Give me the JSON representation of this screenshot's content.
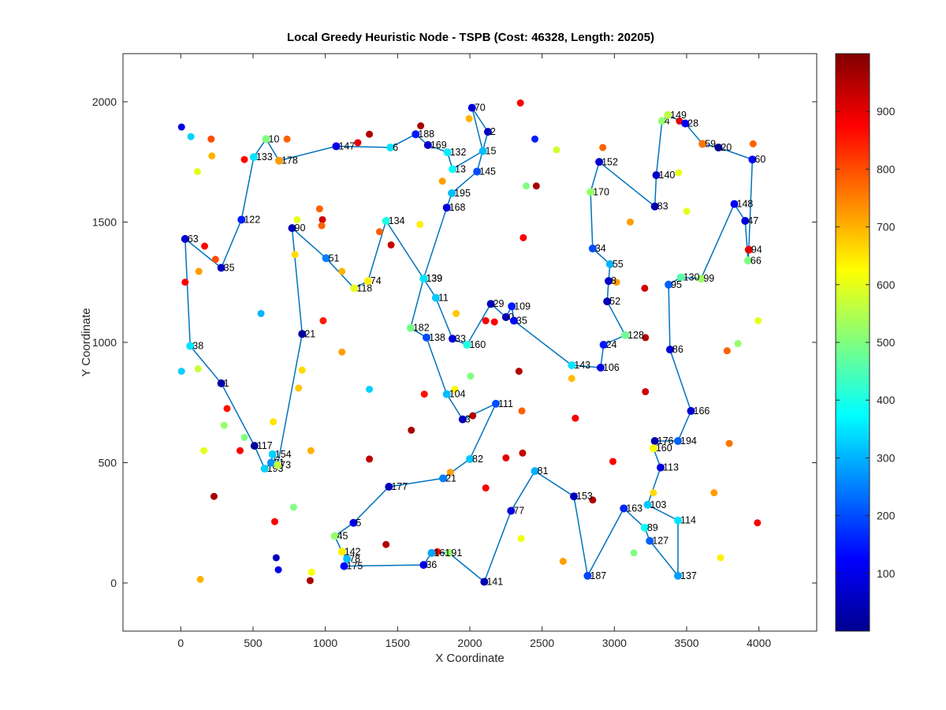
{
  "chart_data": {
    "type": "scatter",
    "title": "Local Greedy Heuristic Node - TSPB (Cost: 46328, Length: 20205)",
    "xlabel": "X Coordinate",
    "ylabel": "Y Coordinate",
    "xlim": [
      -400,
      4400
    ],
    "ylim": [
      -200,
      2200
    ],
    "xticks": [
      0,
      500,
      1000,
      1500,
      2000,
      2500,
      3000,
      3500,
      4000
    ],
    "yticks": [
      0,
      500,
      1000,
      1500,
      2000
    ],
    "colorbar": {
      "colormap": "jet",
      "range": [
        0,
        1000
      ],
      "ticks": [
        100,
        200,
        300,
        400,
        500,
        600,
        700,
        800,
        900
      ]
    },
    "grid": false,
    "route_color": "#0072BD",
    "route": [
      {
        "label": "10",
        "x": 590,
        "y": 1845,
        "c": 500
      },
      {
        "label": "133",
        "x": 505,
        "y": 1770,
        "c": 350
      },
      {
        "label": "122",
        "x": 420,
        "y": 1510,
        "c": 150
      },
      {
        "label": "35",
        "x": 280,
        "y": 1310,
        "c": 60
      },
      {
        "label": "63",
        "x": 30,
        "y": 1430,
        "c": 80
      },
      {
        "label": "38",
        "x": 65,
        "y": 985,
        "c": 350
      },
      {
        "label": "1",
        "x": 280,
        "y": 830,
        "c": 40
      },
      {
        "label": "117",
        "x": 510,
        "y": 570,
        "c": 30
      },
      {
        "label": "193",
        "x": 580,
        "y": 475,
        "c": 330
      },
      {
        "label": "31",
        "x": 625,
        "y": 500,
        "c": 270
      },
      {
        "label": "154",
        "x": 635,
        "y": 535,
        "c": 330
      },
      {
        "label": "73",
        "x": 670,
        "y": 490,
        "c": 560
      },
      {
        "label": "21",
        "x": 840,
        "y": 1035,
        "c": 30
      },
      {
        "label": "90",
        "x": 770,
        "y": 1475,
        "c": 60
      },
      {
        "label": "51",
        "x": 1005,
        "y": 1350,
        "c": 250
      },
      {
        "label": "118",
        "x": 1200,
        "y": 1225,
        "c": 600
      },
      {
        "label": "74",
        "x": 1295,
        "y": 1255,
        "c": 640
      },
      {
        "label": "134",
        "x": 1420,
        "y": 1505,
        "c": 400
      },
      {
        "label": "139",
        "x": 1680,
        "y": 1265,
        "c": 350
      },
      {
        "label": "168",
        "x": 1840,
        "y": 1560,
        "c": 90
      },
      {
        "label": "195",
        "x": 1875,
        "y": 1620,
        "c": 310
      },
      {
        "label": "145",
        "x": 2050,
        "y": 1710,
        "c": 200
      },
      {
        "label": "2",
        "x": 2125,
        "y": 1875,
        "c": 60
      },
      {
        "label": "70",
        "x": 2015,
        "y": 1975,
        "c": 90
      },
      {
        "label": "15",
        "x": 2090,
        "y": 1795,
        "c": 310
      },
      {
        "label": "13",
        "x": 1880,
        "y": 1720,
        "c": 380
      },
      {
        "label": "132",
        "x": 1845,
        "y": 1790,
        "c": 360
      },
      {
        "label": "169",
        "x": 1710,
        "y": 1820,
        "c": 70
      },
      {
        "label": "188",
        "x": 1625,
        "y": 1865,
        "c": 150
      },
      {
        "label": "6",
        "x": 1450,
        "y": 1810,
        "c": 350
      },
      {
        "label": "147",
        "x": 1075,
        "y": 1815,
        "c": 100
      },
      {
        "label": "178",
        "x": 680,
        "y": 1755,
        "c": 720
      },
      {
        "label": "10",
        "x": 590,
        "y": 1845,
        "c": 500
      }
    ],
    "route2": [
      {
        "label": "45",
        "x": 1065,
        "y": 195,
        "c": 520
      },
      {
        "label": "5",
        "x": 1195,
        "y": 250,
        "c": 100
      },
      {
        "label": "177",
        "x": 1440,
        "y": 400,
        "c": 60
      },
      {
        "label": "21",
        "x": 1815,
        "y": 435,
        "c": 250
      },
      {
        "label": "82",
        "x": 2000,
        "y": 515,
        "c": 320
      },
      {
        "label": "111",
        "x": 2180,
        "y": 745,
        "c": 200
      },
      {
        "label": "3",
        "x": 1950,
        "y": 680,
        "c": 60
      },
      {
        "label": "104",
        "x": 1840,
        "y": 785,
        "c": 310
      },
      {
        "label": "138",
        "x": 1700,
        "y": 1020,
        "c": 200
      },
      {
        "label": "182",
        "x": 1590,
        "y": 1060,
        "c": 490
      },
      {
        "label": "139",
        "x": 1680,
        "y": 1265,
        "c": 350
      },
      {
        "label": "11",
        "x": 1765,
        "y": 1185,
        "c": 320
      },
      {
        "label": "33",
        "x": 1880,
        "y": 1015,
        "c": 90
      },
      {
        "label": "160",
        "x": 1980,
        "y": 990,
        "c": 400
      },
      {
        "label": "29",
        "x": 2145,
        "y": 1160,
        "c": 60
      },
      {
        "label": "0",
        "x": 2250,
        "y": 1105,
        "c": 50
      },
      {
        "label": "109",
        "x": 2290,
        "y": 1150,
        "c": 150
      },
      {
        "label": "35",
        "x": 2305,
        "y": 1090,
        "c": 130
      },
      {
        "label": "143",
        "x": 2705,
        "y": 905,
        "c": 350
      },
      {
        "label": "106",
        "x": 2905,
        "y": 895,
        "c": 100
      },
      {
        "label": "24",
        "x": 2925,
        "y": 990,
        "c": 150
      },
      {
        "label": "128",
        "x": 3075,
        "y": 1030,
        "c": 480
      },
      {
        "label": "52",
        "x": 2950,
        "y": 1170,
        "c": 50
      },
      {
        "label": "8",
        "x": 2960,
        "y": 1255,
        "c": 70
      },
      {
        "label": "55",
        "x": 2970,
        "y": 1325,
        "c": 300
      },
      {
        "label": "34",
        "x": 2850,
        "y": 1390,
        "c": 200
      },
      {
        "label": "170",
        "x": 2835,
        "y": 1625,
        "c": 520
      },
      {
        "label": "152",
        "x": 2895,
        "y": 1750,
        "c": 80
      },
      {
        "label": "83",
        "x": 3280,
        "y": 1565,
        "c": 50
      },
      {
        "label": "140",
        "x": 3290,
        "y": 1695,
        "c": 70
      },
      {
        "label": "4",
        "x": 3330,
        "y": 1920,
        "c": 520
      },
      {
        "label": "149",
        "x": 3370,
        "y": 1945,
        "c": 560
      },
      {
        "label": "28",
        "x": 3490,
        "y": 1910,
        "c": 110
      },
      {
        "label": "59",
        "x": 3610,
        "y": 1825,
        "c": 760
      },
      {
        "label": "20",
        "x": 3720,
        "y": 1810,
        "c": 20
      },
      {
        "label": "60",
        "x": 3955,
        "y": 1760,
        "c": 130
      },
      {
        "label": "94",
        "x": 3930,
        "y": 1385,
        "c": 900
      },
      {
        "label": "66",
        "x": 3925,
        "y": 1340,
        "c": 500
      },
      {
        "label": "47",
        "x": 3905,
        "y": 1505,
        "c": 90
      },
      {
        "label": "148",
        "x": 3830,
        "y": 1575,
        "c": 120
      },
      {
        "label": "99",
        "x": 3600,
        "y": 1265,
        "c": 530
      },
      {
        "label": "130",
        "x": 3460,
        "y": 1270,
        "c": 460
      },
      {
        "label": "95",
        "x": 3375,
        "y": 1240,
        "c": 220
      },
      {
        "label": "86",
        "x": 3385,
        "y": 970,
        "c": 90
      },
      {
        "label": "166",
        "x": 3530,
        "y": 715,
        "c": 80
      },
      {
        "label": "194",
        "x": 3440,
        "y": 590,
        "c": 220
      },
      {
        "label": "176",
        "x": 3280,
        "y": 590,
        "c": 40
      },
      {
        "label": "160",
        "x": 3270,
        "y": 560,
        "c": 620
      },
      {
        "label": "113",
        "x": 3320,
        "y": 480,
        "c": 90
      },
      {
        "label": "103",
        "x": 3230,
        "y": 325,
        "c": 320
      },
      {
        "label": "114",
        "x": 3440,
        "y": 260,
        "c": 350
      },
      {
        "label": "137",
        "x": 3440,
        "y": 30,
        "c": 280
      },
      {
        "label": "127",
        "x": 3245,
        "y": 175,
        "c": 220
      },
      {
        "label": "89",
        "x": 3210,
        "y": 230,
        "c": 380
      },
      {
        "label": "163",
        "x": 3065,
        "y": 310,
        "c": 160
      },
      {
        "label": "187",
        "x": 2815,
        "y": 30,
        "c": 190
      },
      {
        "label": "153",
        "x": 2720,
        "y": 360,
        "c": 60
      },
      {
        "label": "81",
        "x": 2450,
        "y": 465,
        "c": 300
      },
      {
        "label": "77",
        "x": 2285,
        "y": 300,
        "c": 90
      },
      {
        "label": "141",
        "x": 2100,
        "y": 5,
        "c": 50
      },
      {
        "label": "91",
        "x": 1855,
        "y": 125,
        "c": 520
      },
      {
        "label": "161",
        "x": 1735,
        "y": 125,
        "c": 290
      },
      {
        "label": "36",
        "x": 1680,
        "y": 75,
        "c": 100
      },
      {
        "label": "175",
        "x": 1130,
        "y": 70,
        "c": 130
      },
      {
        "label": "78",
        "x": 1150,
        "y": 100,
        "c": 310
      },
      {
        "label": "142",
        "x": 1115,
        "y": 130,
        "c": 640
      },
      {
        "label": "45",
        "x": 1065,
        "y": 195,
        "c": 520
      }
    ],
    "unvisited": [
      {
        "x": 5,
        "y": 1895,
        "c": 100
      },
      {
        "x": 70,
        "y": 1855,
        "c": 330
      },
      {
        "x": 210,
        "y": 1845,
        "c": 800
      },
      {
        "x": 215,
        "y": 1775,
        "c": 700
      },
      {
        "x": 115,
        "y": 1710,
        "c": 600
      },
      {
        "x": 440,
        "y": 1760,
        "c": 870
      },
      {
        "x": 735,
        "y": 1845,
        "c": 780
      },
      {
        "x": 1225,
        "y": 1830,
        "c": 900
      },
      {
        "x": 1305,
        "y": 1865,
        "c": 950
      },
      {
        "x": 1660,
        "y": 1900,
        "c": 960
      },
      {
        "x": 1995,
        "y": 1930,
        "c": 700
      },
      {
        "x": 2350,
        "y": 1995,
        "c": 880
      },
      {
        "x": 2450,
        "y": 1845,
        "c": 150
      },
      {
        "x": 2600,
        "y": 1800,
        "c": 580
      },
      {
        "x": 2920,
        "y": 1810,
        "c": 780
      },
      {
        "x": 3450,
        "y": 1920,
        "c": 900
      },
      {
        "x": 3445,
        "y": 1705,
        "c": 600
      },
      {
        "x": 3960,
        "y": 1825,
        "c": 780
      },
      {
        "x": 1810,
        "y": 1670,
        "c": 720
      },
      {
        "x": 2390,
        "y": 1650,
        "c": 500
      },
      {
        "x": 2460,
        "y": 1650,
        "c": 960
      },
      {
        "x": 3500,
        "y": 1545,
        "c": 600
      },
      {
        "x": 3110,
        "y": 1500,
        "c": 720
      },
      {
        "x": 2370,
        "y": 1435,
        "c": 880
      },
      {
        "x": 960,
        "y": 1555,
        "c": 780
      },
      {
        "x": 980,
        "y": 1510,
        "c": 920
      },
      {
        "x": 805,
        "y": 1510,
        "c": 600
      },
      {
        "x": 975,
        "y": 1485,
        "c": 780
      },
      {
        "x": 1375,
        "y": 1460,
        "c": 780
      },
      {
        "x": 1655,
        "y": 1490,
        "c": 640
      },
      {
        "x": 1455,
        "y": 1405,
        "c": 930
      },
      {
        "x": 165,
        "y": 1400,
        "c": 870
      },
      {
        "x": 240,
        "y": 1345,
        "c": 800
      },
      {
        "x": 125,
        "y": 1295,
        "c": 720
      },
      {
        "x": 790,
        "y": 1365,
        "c": 660
      },
      {
        "x": 1115,
        "y": 1295,
        "c": 700
      },
      {
        "x": 30,
        "y": 1250,
        "c": 880
      },
      {
        "x": 3015,
        "y": 1250,
        "c": 720
      },
      {
        "x": 3210,
        "y": 1225,
        "c": 920
      },
      {
        "x": 1905,
        "y": 1120,
        "c": 680
      },
      {
        "x": 2110,
        "y": 1090,
        "c": 880
      },
      {
        "x": 2170,
        "y": 1085,
        "c": 880
      },
      {
        "x": 555,
        "y": 1120,
        "c": 300
      },
      {
        "x": 985,
        "y": 1090,
        "c": 850
      },
      {
        "x": 3995,
        "y": 1090,
        "c": 600
      },
      {
        "x": 3215,
        "y": 1020,
        "c": 950
      },
      {
        "x": 3855,
        "y": 995,
        "c": 520
      },
      {
        "x": 1115,
        "y": 960,
        "c": 720
      },
      {
        "x": 3780,
        "y": 965,
        "c": 780
      },
      {
        "x": 5,
        "y": 880,
        "c": 330
      },
      {
        "x": 120,
        "y": 890,
        "c": 570
      },
      {
        "x": 840,
        "y": 885,
        "c": 660
      },
      {
        "x": 2340,
        "y": 880,
        "c": 950
      },
      {
        "x": 2005,
        "y": 860,
        "c": 500
      },
      {
        "x": 2705,
        "y": 850,
        "c": 690
      },
      {
        "x": 815,
        "y": 810,
        "c": 680
      },
      {
        "x": 1305,
        "y": 805,
        "c": 330
      },
      {
        "x": 1895,
        "y": 805,
        "c": 630
      },
      {
        "x": 1685,
        "y": 785,
        "c": 860
      },
      {
        "x": 3215,
        "y": 795,
        "c": 920
      },
      {
        "x": 320,
        "y": 725,
        "c": 860
      },
      {
        "x": 2020,
        "y": 695,
        "c": 950
      },
      {
        "x": 2360,
        "y": 715,
        "c": 780
      },
      {
        "x": 2730,
        "y": 685,
        "c": 880
      },
      {
        "x": 640,
        "y": 670,
        "c": 650
      },
      {
        "x": 300,
        "y": 655,
        "c": 520
      },
      {
        "x": 1595,
        "y": 635,
        "c": 960
      },
      {
        "x": 440,
        "y": 605,
        "c": 500
      },
      {
        "x": 3795,
        "y": 580,
        "c": 760
      },
      {
        "x": 160,
        "y": 550,
        "c": 600
      },
      {
        "x": 410,
        "y": 550,
        "c": 880
      },
      {
        "x": 900,
        "y": 550,
        "c": 700
      },
      {
        "x": 2365,
        "y": 540,
        "c": 930
      },
      {
        "x": 1305,
        "y": 515,
        "c": 940
      },
      {
        "x": 2250,
        "y": 520,
        "c": 900
      },
      {
        "x": 2990,
        "y": 505,
        "c": 880
      },
      {
        "x": 1865,
        "y": 460,
        "c": 720
      },
      {
        "x": 2110,
        "y": 395,
        "c": 880
      },
      {
        "x": 3270,
        "y": 375,
        "c": 660
      },
      {
        "x": 3690,
        "y": 375,
        "c": 720
      },
      {
        "x": 230,
        "y": 360,
        "c": 960
      },
      {
        "x": 780,
        "y": 315,
        "c": 500
      },
      {
        "x": 2850,
        "y": 345,
        "c": 950
      },
      {
        "x": 650,
        "y": 255,
        "c": 880
      },
      {
        "x": 3990,
        "y": 250,
        "c": 880
      },
      {
        "x": 2355,
        "y": 185,
        "c": 610
      },
      {
        "x": 1420,
        "y": 160,
        "c": 950
      },
      {
        "x": 3135,
        "y": 125,
        "c": 500
      },
      {
        "x": 1775,
        "y": 130,
        "c": 870
      },
      {
        "x": 660,
        "y": 105,
        "c": 60
      },
      {
        "x": 3735,
        "y": 105,
        "c": 640
      },
      {
        "x": 2645,
        "y": 90,
        "c": 720
      },
      {
        "x": 675,
        "y": 55,
        "c": 100
      },
      {
        "x": 905,
        "y": 45,
        "c": 620
      },
      {
        "x": 135,
        "y": 15,
        "c": 700
      },
      {
        "x": 895,
        "y": 10,
        "c": 960
      }
    ]
  }
}
